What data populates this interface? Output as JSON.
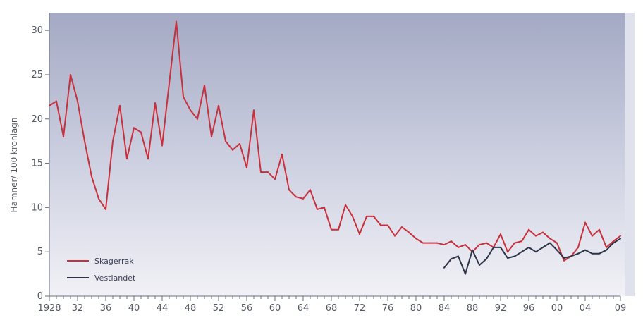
{
  "chart_data": {
    "type": "line",
    "title": "",
    "xlabel": "",
    "ylabel": "Hamner/ 100 kronlagn",
    "xlim": [
      1928,
      2009
    ],
    "ylim": [
      0,
      32
    ],
    "grid": false,
    "legend_position": "bottom-left",
    "x_tick_values": [
      1928,
      1932,
      1936,
      1940,
      1944,
      1948,
      1952,
      1956,
      1960,
      1964,
      1968,
      1972,
      1976,
      1980,
      1984,
      1988,
      1992,
      1996,
      2000,
      2004,
      2009
    ],
    "x_tick_labels": [
      "1928",
      "32",
      "36",
      "40",
      "44",
      "48",
      "52",
      "56",
      "60",
      "64",
      "68",
      "72",
      "76",
      "80",
      "84",
      "88",
      "92",
      "96",
      "00",
      "04",
      "09"
    ],
    "y_tick_values": [
      0,
      5,
      10,
      15,
      20,
      25,
      30
    ],
    "y_tick_labels": [
      "0",
      "5",
      "10",
      "15",
      "20",
      "25",
      "30"
    ],
    "series": [
      {
        "name": "Skagerrak",
        "color": "#c8303c",
        "points": [
          [
            1928,
            21.5
          ],
          [
            1929,
            22
          ],
          [
            1930,
            18
          ],
          [
            1931,
            25
          ],
          [
            1932,
            22
          ],
          [
            1933,
            17.5
          ],
          [
            1934,
            13.5
          ],
          [
            1935,
            11
          ],
          [
            1936,
            9.8
          ],
          [
            1937,
            17.5
          ],
          [
            1938,
            21.5
          ],
          [
            1939,
            15.5
          ],
          [
            1940,
            19
          ],
          [
            1941,
            18.5
          ],
          [
            1942,
            15.5
          ],
          [
            1943,
            21.8
          ],
          [
            1944,
            17
          ],
          [
            1945,
            24
          ],
          [
            1946,
            31
          ],
          [
            1947,
            22.5
          ],
          [
            1948,
            21
          ],
          [
            1949,
            20
          ],
          [
            1950,
            23.8
          ],
          [
            1951,
            18
          ],
          [
            1952,
            21.5
          ],
          [
            1953,
            17.5
          ],
          [
            1954,
            16.5
          ],
          [
            1955,
            17.2
          ],
          [
            1956,
            14.5
          ],
          [
            1957,
            21
          ],
          [
            1958,
            14
          ],
          [
            1959,
            14
          ],
          [
            1960,
            13.2
          ],
          [
            1961,
            16
          ],
          [
            1962,
            12
          ],
          [
            1963,
            11.2
          ],
          [
            1964,
            11
          ],
          [
            1965,
            12
          ],
          [
            1966,
            9.8
          ],
          [
            1967,
            10
          ],
          [
            1968,
            7.5
          ],
          [
            1969,
            7.5
          ],
          [
            1970,
            10.3
          ],
          [
            1971,
            9
          ],
          [
            1972,
            7
          ],
          [
            1973,
            9
          ],
          [
            1974,
            9
          ],
          [
            1975,
            8
          ],
          [
            1976,
            8
          ],
          [
            1977,
            6.8
          ],
          [
            1978,
            7.8
          ],
          [
            1979,
            7.2
          ],
          [
            1980,
            6.5
          ],
          [
            1981,
            6
          ],
          [
            1982,
            6
          ],
          [
            1983,
            6
          ],
          [
            1984,
            5.8
          ],
          [
            1985,
            6.2
          ],
          [
            1986,
            5.5
          ],
          [
            1987,
            5.8
          ],
          [
            1988,
            5
          ],
          [
            1989,
            5.8
          ],
          [
            1990,
            6
          ],
          [
            1991,
            5.5
          ],
          [
            1992,
            7
          ],
          [
            1993,
            5
          ],
          [
            1994,
            6
          ],
          [
            1995,
            6.2
          ],
          [
            1996,
            7.5
          ],
          [
            1997,
            6.8
          ],
          [
            1998,
            7.2
          ],
          [
            1999,
            6.5
          ],
          [
            2000,
            6
          ],
          [
            2001,
            4
          ],
          [
            2002,
            4.5
          ],
          [
            2003,
            5.5
          ],
          [
            2004,
            8.3
          ],
          [
            2005,
            6.8
          ],
          [
            2006,
            7.5
          ],
          [
            2007,
            5.5
          ],
          [
            2008,
            6.2
          ],
          [
            2009,
            6.8
          ]
        ]
      },
      {
        "name": "Vestlandet",
        "color": "#2e3447",
        "points": [
          [
            1984,
            3.2
          ],
          [
            1985,
            4.2
          ],
          [
            1986,
            4.5
          ],
          [
            1987,
            2.5
          ],
          [
            1988,
            5.2
          ],
          [
            1989,
            3.5
          ],
          [
            1990,
            4.2
          ],
          [
            1991,
            5.5
          ],
          [
            1992,
            5.5
          ],
          [
            1993,
            4.3
          ],
          [
            1994,
            4.5
          ],
          [
            1995,
            5
          ],
          [
            1996,
            5.5
          ],
          [
            1997,
            5
          ],
          [
            1998,
            5.5
          ],
          [
            1999,
            6
          ],
          [
            2000,
            5.2
          ],
          [
            2001,
            4.3
          ],
          [
            2002,
            4.5
          ],
          [
            2003,
            4.8
          ],
          [
            2004,
            5.2
          ],
          [
            2005,
            4.8
          ],
          [
            2006,
            4.8
          ],
          [
            2007,
            5.2
          ],
          [
            2008,
            6
          ],
          [
            2009,
            6.5
          ]
        ]
      }
    ]
  }
}
